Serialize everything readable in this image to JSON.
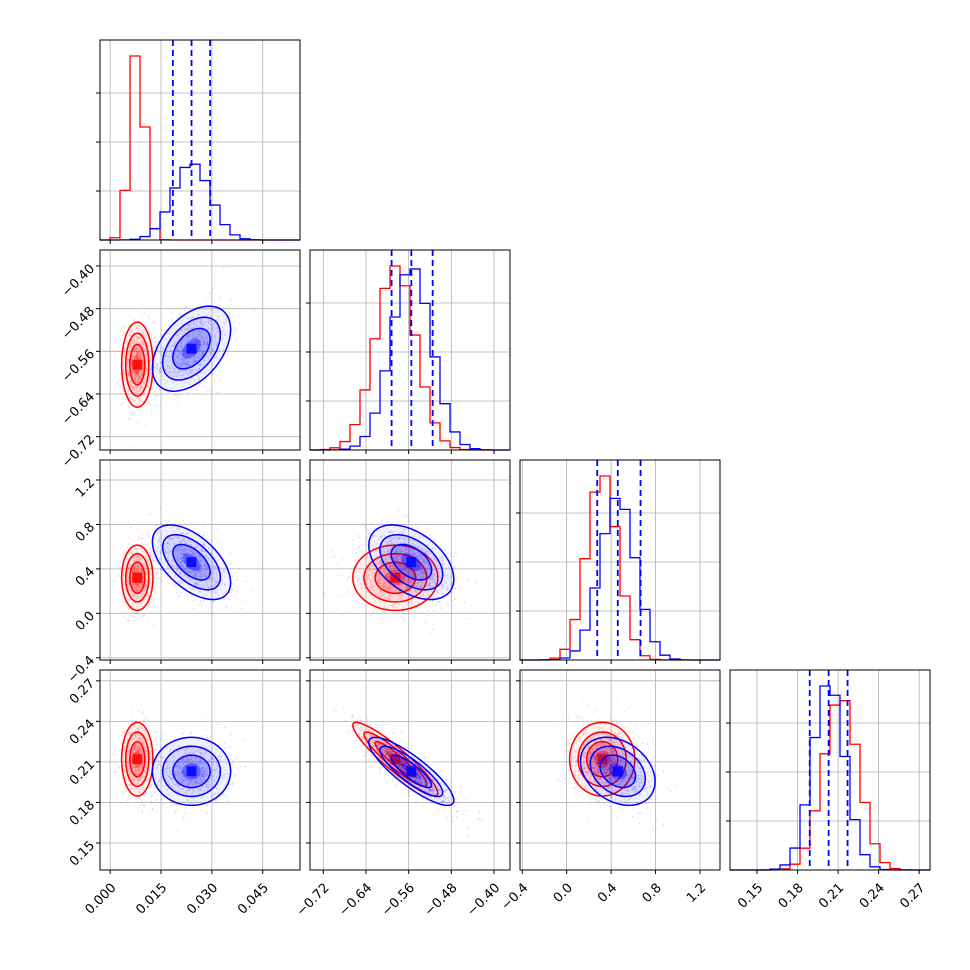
{
  "chart_data": {
    "type": "corner",
    "grid": true,
    "n_params": 4,
    "series": [
      {
        "name": "red",
        "color": "#ff0000",
        "mean": [
          0.008,
          -0.585,
          0.32,
          0.212
        ],
        "sd": [
          0.0022,
          0.038,
          0.14,
          0.013
        ]
      },
      {
        "name": "blue",
        "color": "#0000ff",
        "mean": [
          0.024,
          -0.555,
          0.46,
          0.203
        ],
        "sd": [
          0.0055,
          0.038,
          0.16,
          0.012
        ]
      }
    ],
    "quantile_lines": {
      "series": "blue",
      "color": "#0000ff",
      "values": [
        [
          0.0185,
          0.024,
          0.0295
        ],
        [
          -0.592,
          -0.555,
          -0.515
        ],
        [
          0.275,
          0.46,
          0.665
        ],
        [
          0.189,
          0.203,
          0.217
        ]
      ]
    },
    "params": [
      {
        "range": [
          -0.003,
          0.056
        ],
        "ticks": [
          "0.000",
          "0.015",
          "0.030",
          "0.045"
        ],
        "tick_values": [
          0.0,
          0.015,
          0.03,
          0.045
        ]
      },
      {
        "range": [
          -0.745,
          -0.37
        ],
        "ticks": [
          "−0.72",
          "−0.64",
          "−0.56",
          "−0.48",
          "−0.40"
        ],
        "tick_values": [
          -0.72,
          -0.64,
          -0.56,
          -0.48,
          -0.4
        ]
      },
      {
        "range": [
          -0.42,
          1.38
        ],
        "ticks": [
          "−0.4",
          "0.0",
          "0.4",
          "0.8",
          "1.2"
        ],
        "tick_values": [
          -0.4,
          0.0,
          0.4,
          0.8,
          1.2
        ]
      },
      {
        "range": [
          0.13,
          0.278
        ],
        "ticks": [
          "0.15",
          "0.18",
          "0.21",
          "0.24",
          "0.27"
        ],
        "tick_values": [
          0.15,
          0.18,
          0.21,
          0.24,
          0.27
        ]
      }
    ],
    "correlations": [
      [
        1.0,
        0.0,
        0.0,
        0.0
      ],
      [
        0.0,
        1.0,
        0.0,
        -0.92
      ],
      [
        0.0,
        0.0,
        1.0,
        0.0
      ],
      [
        0.0,
        -0.92,
        0.0,
        1.0
      ]
    ],
    "blue_correlations": [
      [
        1.0,
        0.45,
        -0.55,
        0.0
      ],
      [
        0.45,
        1.0,
        -0.45,
        -0.85
      ],
      [
        -0.55,
        -0.45,
        1.0,
        -0.3
      ],
      [
        0.0,
        -0.85,
        -0.3,
        1.0
      ]
    ]
  }
}
